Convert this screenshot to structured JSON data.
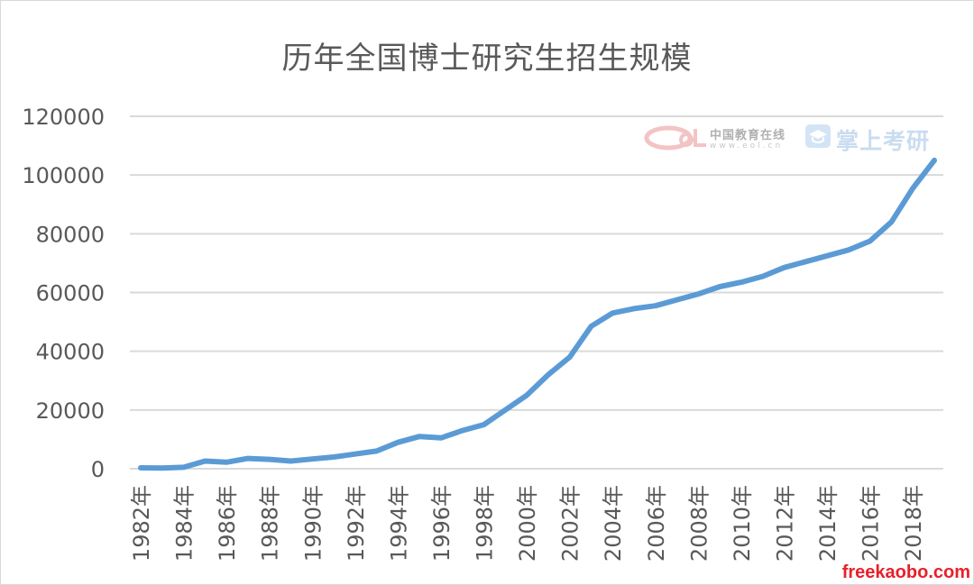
{
  "chart_data": {
    "type": "line",
    "title": "历年全国博士研究生招生规模",
    "xlabel": "",
    "ylabel": "",
    "x": [
      "1982年",
      "1983年",
      "1984年",
      "1985年",
      "1986年",
      "1987年",
      "1988年",
      "1989年",
      "1990年",
      "1991年",
      "1992年",
      "1993年",
      "1994年",
      "1995年",
      "1996年",
      "1997年",
      "1998年",
      "1999年",
      "2000年",
      "2001年",
      "2002年",
      "2003年",
      "2004年",
      "2005年",
      "2006年",
      "2007年",
      "2008年",
      "2009年",
      "2010年",
      "2011年",
      "2012年",
      "2013年",
      "2014年",
      "2015年",
      "2016年",
      "2017年",
      "2018年",
      "2019年"
    ],
    "x_tick_labels": [
      "1982年",
      "1984年",
      "1986年",
      "1988年",
      "1990年",
      "1992年",
      "1994年",
      "1996年",
      "1998年",
      "2000年",
      "2002年",
      "2004年",
      "2006年",
      "2008年",
      "2010年",
      "2012年",
      "2014年",
      "2016年",
      "2018年"
    ],
    "series": [
      {
        "values": [
          300,
          200,
          500,
          2600,
          2200,
          3500,
          3200,
          2600,
          3300,
          4000,
          5000,
          6000,
          9000,
          11000,
          10500,
          13000,
          15000,
          20000,
          25000,
          32000,
          38000,
          48500,
          53000,
          54500,
          55500,
          57500,
          59500,
          62000,
          63500,
          65500,
          68500,
          70500,
          72500,
          74500,
          77500,
          84000,
          95500,
          105000
        ]
      }
    ],
    "ylim": [
      0,
      120000
    ],
    "yticks": [
      0,
      20000,
      40000,
      60000,
      80000,
      100000,
      120000
    ],
    "grid": true,
    "legend": "none",
    "line_color": "#5b9bd5",
    "grid_color": "#d9d9d9"
  },
  "watermarks": {
    "eol_brand": "中国教育在线",
    "eol_url": "www.eol.cn",
    "app_name": "掌上考研",
    "site": "freekaobo.com"
  }
}
